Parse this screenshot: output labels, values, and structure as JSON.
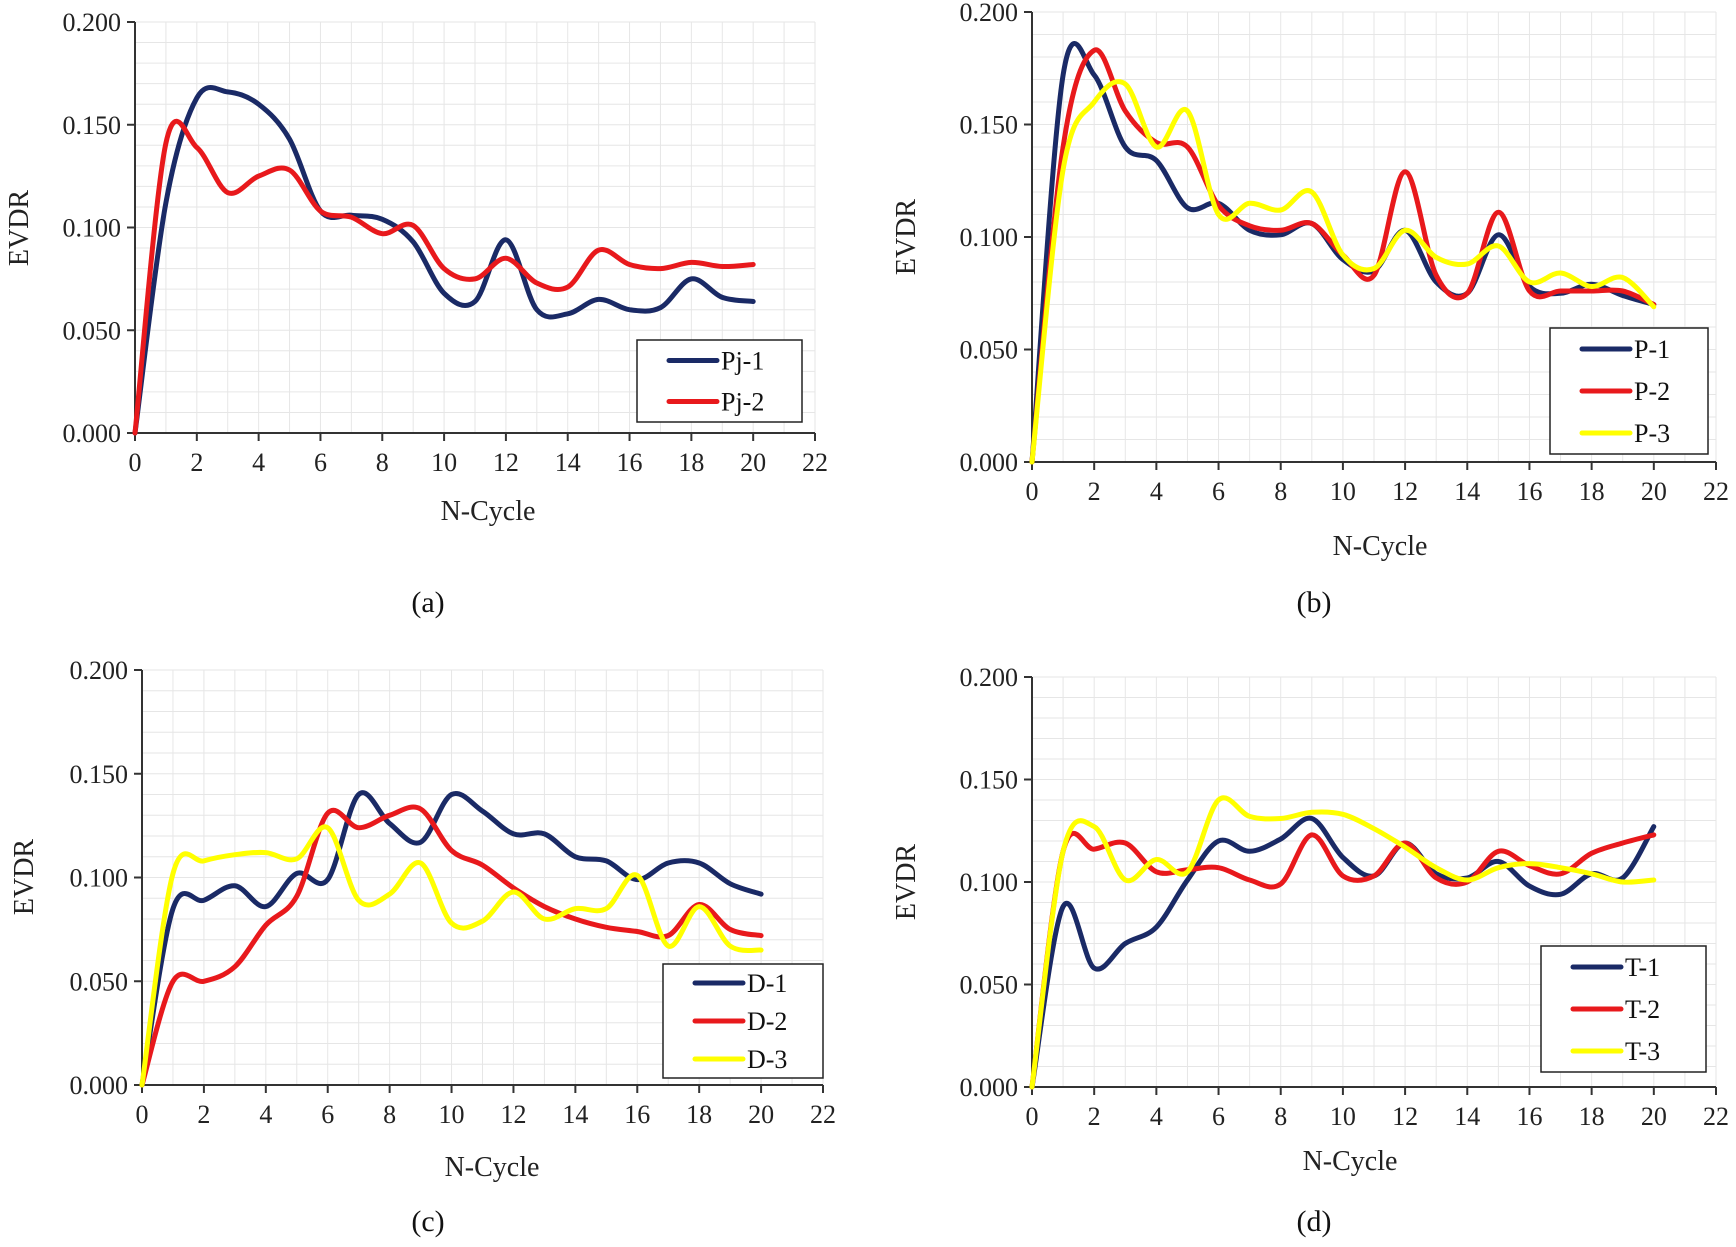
{
  "chart_data": [
    {
      "id": "a",
      "type": "line",
      "caption": "(a)",
      "xlabel": "N-Cycle",
      "ylabel": "EVDR",
      "xlim": [
        0,
        22
      ],
      "ylim": [
        0,
        0.2
      ],
      "xticks": [
        "0",
        "2",
        "4",
        "6",
        "8",
        "10",
        "12",
        "14",
        "16",
        "18",
        "20",
        "22"
      ],
      "yticks": [
        "0.000",
        "0.050",
        "0.100",
        "0.150",
        "0.200"
      ],
      "grid": true,
      "legend_position": "bottom-right",
      "series": [
        {
          "name": "Pj-1",
          "color": "#1a2a66",
          "x": [
            0,
            1,
            2,
            3,
            4,
            5,
            6,
            7,
            8,
            9,
            10,
            11,
            12,
            13,
            14,
            15,
            16,
            17,
            18,
            19,
            20
          ],
          "y": [
            0,
            0.112,
            0.163,
            0.166,
            0.16,
            0.143,
            0.108,
            0.106,
            0.104,
            0.093,
            0.068,
            0.064,
            0.094,
            0.06,
            0.058,
            0.065,
            0.06,
            0.061,
            0.075,
            0.066,
            0.064
          ]
        },
        {
          "name": "Pj-2",
          "color": "#e8191c",
          "x": [
            0,
            1,
            2,
            3,
            4,
            5,
            6,
            7,
            8,
            9,
            10,
            11,
            12,
            13,
            14,
            15,
            16,
            17,
            18,
            19,
            20
          ],
          "y": [
            0,
            0.141,
            0.139,
            0.117,
            0.125,
            0.128,
            0.108,
            0.105,
            0.097,
            0.101,
            0.08,
            0.075,
            0.085,
            0.073,
            0.071,
            0.089,
            0.082,
            0.08,
            0.083,
            0.081,
            0.082
          ]
        }
      ]
    },
    {
      "id": "b",
      "type": "line",
      "caption": "(b)",
      "xlabel": "N-Cycle",
      "ylabel": "EVDR",
      "xlim": [
        0,
        22
      ],
      "ylim": [
        0,
        0.2
      ],
      "xticks": [
        "0",
        "2",
        "4",
        "6",
        "8",
        "10",
        "12",
        "14",
        "16",
        "18",
        "20",
        "22"
      ],
      "yticks": [
        "0.000",
        "0.050",
        "0.100",
        "0.150",
        "0.200"
      ],
      "grid": true,
      "legend_position": "bottom-right",
      "series": [
        {
          "name": "P-1",
          "color": "#1a2a66",
          "x": [
            0,
            1,
            2,
            3,
            4,
            5,
            6,
            7,
            8,
            9,
            10,
            11,
            12,
            13,
            14,
            15,
            16,
            17,
            18,
            19,
            20
          ],
          "y": [
            0,
            0.172,
            0.172,
            0.14,
            0.134,
            0.113,
            0.115,
            0.103,
            0.101,
            0.106,
            0.09,
            0.085,
            0.103,
            0.08,
            0.075,
            0.101,
            0.078,
            0.075,
            0.079,
            0.074,
            0.07
          ]
        },
        {
          "name": "P-2",
          "color": "#e8191c",
          "x": [
            0,
            1,
            2,
            3,
            4,
            5,
            6,
            7,
            8,
            9,
            10,
            11,
            12,
            13,
            14,
            15,
            16,
            17,
            18,
            19,
            20
          ],
          "y": [
            0,
            0.14,
            0.183,
            0.156,
            0.142,
            0.14,
            0.114,
            0.105,
            0.103,
            0.106,
            0.092,
            0.083,
            0.129,
            0.083,
            0.075,
            0.111,
            0.076,
            0.076,
            0.076,
            0.076,
            0.07
          ]
        },
        {
          "name": "P-3",
          "color": "#ffff00",
          "x": [
            0,
            1,
            2,
            3,
            4,
            5,
            6,
            7,
            8,
            9,
            10,
            11,
            12,
            13,
            14,
            15,
            16,
            17,
            18,
            19,
            20
          ],
          "y": [
            0,
            0.13,
            0.16,
            0.168,
            0.14,
            0.156,
            0.11,
            0.115,
            0.112,
            0.12,
            0.092,
            0.086,
            0.103,
            0.091,
            0.088,
            0.096,
            0.08,
            0.084,
            0.078,
            0.082,
            0.069
          ]
        }
      ]
    },
    {
      "id": "c",
      "type": "line",
      "caption": "(c)",
      "xlabel": "N-Cycle",
      "ylabel": "EVDR",
      "xlim": [
        0,
        22
      ],
      "ylim": [
        0,
        0.2
      ],
      "xticks": [
        "0",
        "2",
        "4",
        "6",
        "8",
        "10",
        "12",
        "14",
        "16",
        "18",
        "20",
        "22"
      ],
      "yticks": [
        "0.000",
        "0.050",
        "0.100",
        "0.150",
        "0.200"
      ],
      "grid": true,
      "legend_position": "bottom-right",
      "series": [
        {
          "name": "D-1",
          "color": "#1a2a66",
          "x": [
            0,
            1,
            2,
            3,
            4,
            5,
            6,
            7,
            8,
            9,
            10,
            11,
            12,
            13,
            14,
            15,
            16,
            17,
            18,
            19,
            20
          ],
          "y": [
            0,
            0.085,
            0.089,
            0.096,
            0.086,
            0.102,
            0.099,
            0.14,
            0.126,
            0.117,
            0.14,
            0.132,
            0.121,
            0.121,
            0.11,
            0.108,
            0.099,
            0.107,
            0.107,
            0.097,
            0.092
          ]
        },
        {
          "name": "D-2",
          "color": "#e8191c",
          "x": [
            0,
            1,
            2,
            3,
            4,
            5,
            6,
            7,
            8,
            9,
            10,
            11,
            12,
            13,
            14,
            15,
            16,
            17,
            18,
            19,
            20
          ],
          "y": [
            0,
            0.05,
            0.05,
            0.057,
            0.077,
            0.091,
            0.131,
            0.124,
            0.13,
            0.133,
            0.113,
            0.106,
            0.095,
            0.086,
            0.08,
            0.076,
            0.074,
            0.072,
            0.087,
            0.075,
            0.072
          ]
        },
        {
          "name": "D-3",
          "color": "#ffff00",
          "x": [
            0,
            1,
            2,
            3,
            4,
            5,
            6,
            7,
            8,
            9,
            10,
            11,
            12,
            13,
            14,
            15,
            16,
            17,
            18,
            19,
            20
          ],
          "y": [
            0,
            0.102,
            0.108,
            0.111,
            0.112,
            0.109,
            0.124,
            0.089,
            0.092,
            0.107,
            0.078,
            0.079,
            0.093,
            0.08,
            0.085,
            0.085,
            0.101,
            0.067,
            0.086,
            0.067,
            0.065
          ]
        }
      ]
    },
    {
      "id": "d",
      "type": "line",
      "caption": "(d)",
      "xlabel": "N-Cycle",
      "ylabel": "EVDR",
      "xlim": [
        0,
        22
      ],
      "ylim": [
        0,
        0.2
      ],
      "xticks": [
        "0",
        "2",
        "4",
        "6",
        "8",
        "10",
        "12",
        "14",
        "16",
        "18",
        "20",
        "22"
      ],
      "yticks": [
        "0.000",
        "0.050",
        "0.100",
        "0.150",
        "0.200"
      ],
      "grid": true,
      "legend_position": "bottom-right",
      "series": [
        {
          "name": "T-1",
          "color": "#1a2a66",
          "x": [
            0,
            1,
            2,
            3,
            4,
            5,
            6,
            7,
            8,
            9,
            10,
            11,
            12,
            13,
            14,
            15,
            16,
            17,
            18,
            19,
            20
          ],
          "y": [
            0,
            0.088,
            0.058,
            0.07,
            0.078,
            0.101,
            0.12,
            0.115,
            0.121,
            0.131,
            0.112,
            0.103,
            0.119,
            0.104,
            0.102,
            0.11,
            0.098,
            0.094,
            0.104,
            0.102,
            0.127
          ]
        },
        {
          "name": "T-2",
          "color": "#e8191c",
          "x": [
            0,
            1,
            2,
            3,
            4,
            5,
            6,
            7,
            8,
            9,
            10,
            11,
            12,
            13,
            14,
            15,
            16,
            17,
            18,
            19,
            20
          ],
          "y": [
            0,
            0.115,
            0.116,
            0.119,
            0.105,
            0.106,
            0.107,
            0.101,
            0.099,
            0.123,
            0.103,
            0.103,
            0.119,
            0.102,
            0.1,
            0.115,
            0.108,
            0.104,
            0.114,
            0.119,
            0.123
          ]
        },
        {
          "name": "T-3",
          "color": "#ffff00",
          "x": [
            0,
            1,
            2,
            3,
            4,
            5,
            6,
            7,
            8,
            9,
            10,
            11,
            12,
            13,
            14,
            15,
            16,
            17,
            18,
            19,
            20
          ],
          "y": [
            0,
            0.115,
            0.127,
            0.101,
            0.111,
            0.105,
            0.14,
            0.132,
            0.131,
            0.134,
            0.133,
            0.126,
            0.117,
            0.107,
            0.101,
            0.107,
            0.109,
            0.107,
            0.104,
            0.1,
            0.101
          ]
        }
      ]
    }
  ]
}
